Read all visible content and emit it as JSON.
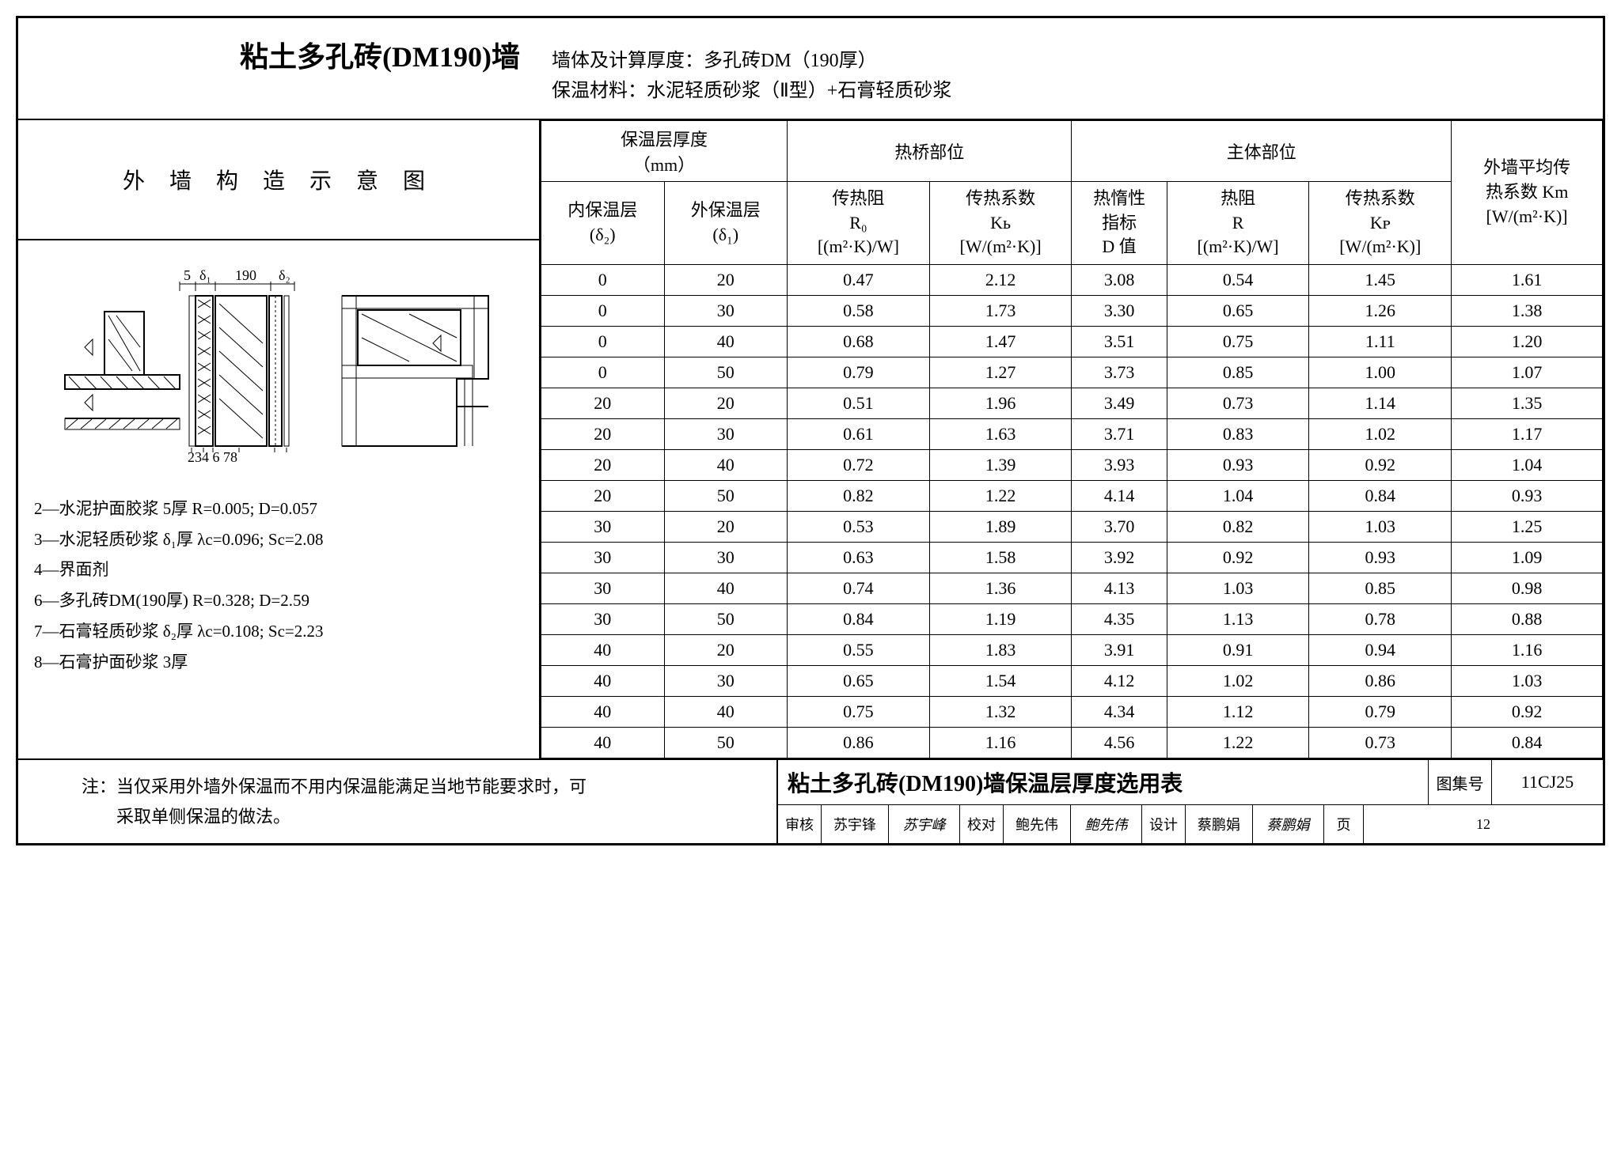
{
  "header": {
    "main_title": "粘土多孔砖(DM190)墙",
    "line1_label": "墙体及计算厚度：",
    "line1_value": "多孔砖DM（190厚）",
    "line2_label": "保温材料：",
    "line2_value": "水泥轻质砂浆（Ⅱ型）+石膏轻质砂浆"
  },
  "diagram": {
    "title": "外 墙 构 造 示 意 图",
    "dim_labels": [
      "5",
      "δ₁",
      "190",
      "δ₂"
    ],
    "num_labels": "234   6   78",
    "legend": [
      "2—水泥护面胶浆 5厚  R=0.005; D=0.057",
      "3—水泥轻质砂浆 δ₁厚  λc=0.096; Sc=2.08",
      "4—界面剂",
      "6—多孔砖DM(190厚) R=0.328; D=2.59",
      "7—石膏轻质砂浆 δ₂厚  λc=0.108; Sc=2.23",
      "8—石膏护面砂浆 3厚"
    ]
  },
  "table": {
    "group_headers": {
      "insul": "保温层厚度\n（mm）",
      "bridge": "热桥部位",
      "main": "主体部位",
      "avg": "外墙平均传\n热系数 Km\n[W/(m²·K)]"
    },
    "sub_headers": {
      "inner": "内保温层\n(δ₂)",
      "outer": "外保温层\n(δ₁)",
      "r0": "传热阻\nR₀\n[(m²·K)/W]",
      "kb": "传热系数\nKь\n[W/(m²·K)]",
      "d": "热惰性\n指标\nD 值",
      "r": "热阻\nR\n[(m²·K)/W]",
      "kp": "传热系数\nKᴘ\n[W/(m²·K)]"
    },
    "rows": [
      [
        0,
        20,
        "0.47",
        "2.12",
        "3.08",
        "0.54",
        "1.45",
        "1.61"
      ],
      [
        0,
        30,
        "0.58",
        "1.73",
        "3.30",
        "0.65",
        "1.26",
        "1.38"
      ],
      [
        0,
        40,
        "0.68",
        "1.47",
        "3.51",
        "0.75",
        "1.11",
        "1.20"
      ],
      [
        0,
        50,
        "0.79",
        "1.27",
        "3.73",
        "0.85",
        "1.00",
        "1.07"
      ],
      [
        20,
        20,
        "0.51",
        "1.96",
        "3.49",
        "0.73",
        "1.14",
        "1.35"
      ],
      [
        20,
        30,
        "0.61",
        "1.63",
        "3.71",
        "0.83",
        "1.02",
        "1.17"
      ],
      [
        20,
        40,
        "0.72",
        "1.39",
        "3.93",
        "0.93",
        "0.92",
        "1.04"
      ],
      [
        20,
        50,
        "0.82",
        "1.22",
        "4.14",
        "1.04",
        "0.84",
        "0.93"
      ],
      [
        30,
        20,
        "0.53",
        "1.89",
        "3.70",
        "0.82",
        "1.03",
        "1.25"
      ],
      [
        30,
        30,
        "0.63",
        "1.58",
        "3.92",
        "0.92",
        "0.93",
        "1.09"
      ],
      [
        30,
        40,
        "0.74",
        "1.36",
        "4.13",
        "1.03",
        "0.85",
        "0.98"
      ],
      [
        30,
        50,
        "0.84",
        "1.19",
        "4.35",
        "1.13",
        "0.78",
        "0.88"
      ],
      [
        40,
        20,
        "0.55",
        "1.83",
        "3.91",
        "0.91",
        "0.94",
        "1.16"
      ],
      [
        40,
        30,
        "0.65",
        "1.54",
        "4.12",
        "1.02",
        "0.86",
        "1.03"
      ],
      [
        40,
        40,
        "0.75",
        "1.32",
        "4.34",
        "1.12",
        "0.79",
        "0.92"
      ],
      [
        40,
        50,
        "0.86",
        "1.16",
        "4.56",
        "1.22",
        "0.73",
        "0.84"
      ]
    ]
  },
  "footer": {
    "note": "注：当仅采用外墙外保温而不用内保温能满足当地节能要求时，可\n　　采取单侧保温的做法。",
    "doc_title": "粘土多孔砖(DM190)墙保温层厚度选用表",
    "code_label": "图集号",
    "code_value": "11CJ25",
    "page_label": "页",
    "page_value": "12",
    "signs": [
      {
        "label": "审核",
        "name": "苏宇锋",
        "sig": "苏宇峰"
      },
      {
        "label": "校对",
        "name": "鲍先伟",
        "sig": "鲍先伟"
      },
      {
        "label": "设计",
        "name": "蔡鹏娟",
        "sig": "蔡鹏娟"
      }
    ]
  },
  "style": {
    "border_color": "#000000",
    "bg_color": "#ffffff",
    "text_color": "#000000"
  }
}
